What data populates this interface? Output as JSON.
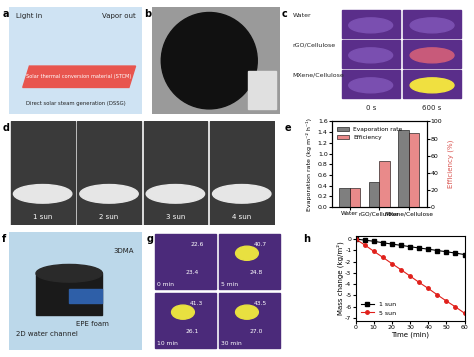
{
  "panel_labels": [
    "a",
    "b",
    "c",
    "d",
    "e",
    "f",
    "g",
    "h"
  ],
  "a": {
    "light_in": "Light in",
    "vapor_out": "Vapor out",
    "material": "Solar thermal conversion material (STCM)",
    "process": "Direct solar steam generation (DSSG)"
  },
  "c": {
    "rows": [
      "Water",
      "rGO/Cellulose",
      "MXene/Cellulose"
    ],
    "times": [
      "0 s",
      "600 s"
    ]
  },
  "d": {
    "labels": [
      "1 sun",
      "2 sun",
      "3 sun",
      "4 sun"
    ]
  },
  "f": {
    "labels": [
      "3DMA",
      "2D water channel",
      "EPE foam"
    ]
  },
  "g": {
    "frames": [
      {
        "time": "0 min",
        "temps": [
          "22.6",
          "23.4"
        ]
      },
      {
        "time": "5 min",
        "temps": [
          "40.7",
          "24.8"
        ]
      },
      {
        "time": "10 min",
        "temps": [
          "41.3",
          "26.1"
        ]
      },
      {
        "time": "30 min",
        "temps": [
          "43.5",
          "27.0"
        ]
      }
    ]
  },
  "chart_data": [
    {
      "type": "bar",
      "categories": [
        "Water",
        "rGO/Cellulose",
        "MXene/Cellulose"
      ],
      "y_label": "Evaporation rate (kg m⁻² h⁻¹)",
      "y2_label": "Efficiency (%)",
      "series": [
        {
          "name": "Evaporation rate",
          "color": "#7f7f7f",
          "values": [
            0.36,
            0.47,
            1.44
          ]
        },
        {
          "name": "Efficiency",
          "color": "#e98a8a",
          "values": [
            22,
            54,
            87
          ],
          "axis": "y2"
        }
      ],
      "ylim": [
        0,
        1.6
      ],
      "yticks": [
        {
          "value": 0,
          "label": "0.0"
        },
        {
          "value": 0.2,
          "label": "0.2"
        },
        {
          "value": 0.4,
          "label": "0.4"
        },
        {
          "value": 0.6,
          "label": "0.6"
        },
        {
          "value": 0.8,
          "label": "0.8"
        },
        {
          "value": 1.0,
          "label": "1.0"
        },
        {
          "value": 1.2,
          "label": "1.2"
        },
        {
          "value": 1.4,
          "label": "1.4"
        },
        {
          "value": 1.6,
          "label": "1.6"
        }
      ],
      "y2lim": [
        0,
        100
      ],
      "y2ticks": [
        0,
        20,
        40,
        60,
        80,
        100
      ],
      "legend": "upper left"
    },
    {
      "type": "line",
      "x_label": "Time (min)",
      "y_label": "Mass change (kg/m²)",
      "x": [
        0,
        5,
        10,
        15,
        20,
        25,
        30,
        35,
        40,
        45,
        50,
        55,
        60
      ],
      "series": [
        {
          "name": "1 sun",
          "color": "#000000",
          "marker": "square",
          "line_style": "solid",
          "values": [
            0,
            -0.1,
            -0.2,
            -0.33,
            -0.45,
            -0.56,
            -0.68,
            -0.8,
            -0.9,
            -1.02,
            -1.13,
            -1.25,
            -1.38
          ]
        },
        {
          "name": "5 sun",
          "color": "#e0201b",
          "marker": "circle",
          "line_style": "solid",
          "values": [
            0,
            -0.52,
            -1.08,
            -1.62,
            -2.18,
            -2.72,
            -3.28,
            -3.85,
            -4.38,
            -4.95,
            -5.5,
            -6.02,
            -6.58
          ]
        }
      ],
      "xlim": [
        0,
        60
      ],
      "xticks": [
        0,
        10,
        20,
        30,
        40,
        50,
        60
      ],
      "ylim": [
        -7.3,
        0.3
      ],
      "yticks": [
        -7,
        -6,
        -5,
        -4,
        -3,
        -2,
        -1,
        0
      ],
      "legend": "lower left"
    }
  ]
}
